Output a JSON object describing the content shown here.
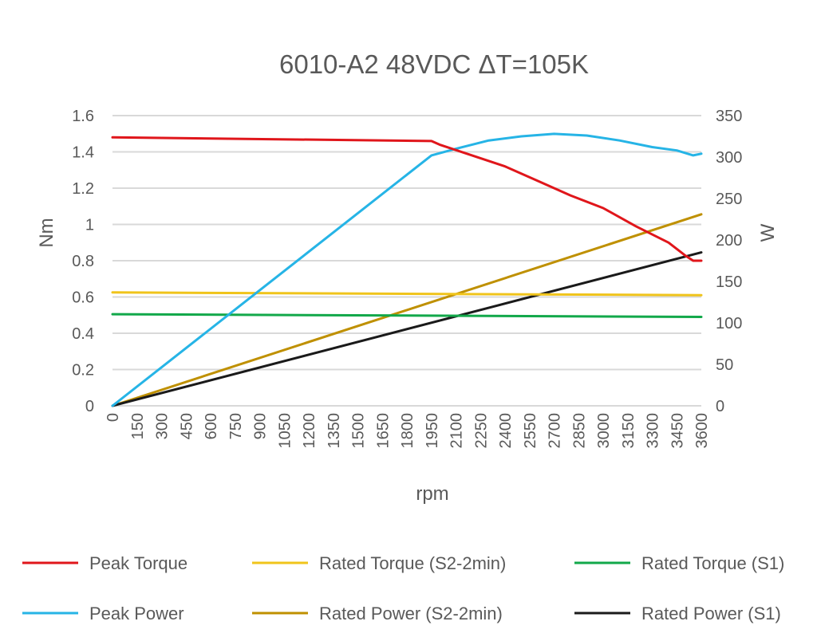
{
  "chart_data": {
    "type": "line",
    "title": "6010-A2 48VDC ΔT=105K",
    "xlabel": "rpm",
    "ylabel_left": "Nm",
    "ylabel_right": "W",
    "grid": true,
    "legend_position": "bottom",
    "categories": [
      "0",
      "150",
      "300",
      "450",
      "600",
      "750",
      "900",
      "1050",
      "1200",
      "1350",
      "1500",
      "1650",
      "1800",
      "1950",
      "2100",
      "2250",
      "2400",
      "2550",
      "2700",
      "2850",
      "3000",
      "3150",
      "3300",
      "3450",
      "3600"
    ],
    "y_left": {
      "min": 0,
      "max": 1.6,
      "ticks": [
        "0",
        "0.2",
        "0.4",
        "0.6",
        "0.8",
        "1",
        "1.2",
        "1.4",
        "1.6"
      ]
    },
    "y_right": {
      "min": 0,
      "max": 350,
      "ticks": [
        "0",
        "50",
        "100",
        "150",
        "200",
        "250",
        "300",
        "350"
      ]
    },
    "series": [
      {
        "name": "Peak Torque",
        "color": "#e0161b",
        "axis": "left",
        "points": [
          [
            0,
            1.48
          ],
          [
            1950,
            1.46
          ],
          [
            2000,
            1.44
          ],
          [
            2200,
            1.38
          ],
          [
            2400,
            1.32
          ],
          [
            2600,
            1.24
          ],
          [
            2800,
            1.16
          ],
          [
            3000,
            1.09
          ],
          [
            3200,
            0.99
          ],
          [
            3400,
            0.9
          ],
          [
            3500,
            0.83
          ],
          [
            3550,
            0.8
          ],
          [
            3600,
            0.8
          ]
        ]
      },
      {
        "name": "Rated Torque (S2-2min)",
        "color": "#f0c41b",
        "axis": "left",
        "points": [
          [
            0,
            0.625
          ],
          [
            3600,
            0.61
          ]
        ]
      },
      {
        "name": "Rated Torque (S1)",
        "color": "#12a84a",
        "axis": "left",
        "points": [
          [
            0,
            0.505
          ],
          [
            3600,
            0.49
          ]
        ]
      },
      {
        "name": "Peak Power",
        "color": "#26b4e6",
        "axis": "right",
        "points": [
          [
            0,
            0
          ],
          [
            1950,
            302
          ],
          [
            2100,
            310
          ],
          [
            2300,
            320
          ],
          [
            2500,
            325
          ],
          [
            2700,
            328
          ],
          [
            2900,
            326
          ],
          [
            3100,
            320
          ],
          [
            3300,
            312
          ],
          [
            3450,
            308
          ],
          [
            3550,
            302
          ],
          [
            3600,
            304
          ]
        ]
      },
      {
        "name": "Rated Power (S2-2min)",
        "color": "#bf9000",
        "axis": "right",
        "points": [
          [
            0,
            0
          ],
          [
            3600,
            231
          ]
        ]
      },
      {
        "name": "Rated Power (S1)",
        "color": "#1a1a1a",
        "axis": "right",
        "points": [
          [
            0,
            0
          ],
          [
            3600,
            185
          ]
        ]
      }
    ],
    "legend_rows": [
      [
        "Peak Torque",
        "Rated Torque (S2-2min)",
        "Rated Torque (S1)"
      ],
      [
        "Peak Power",
        "Rated Power (S2-2min)",
        "Rated Power (S1)"
      ]
    ]
  }
}
